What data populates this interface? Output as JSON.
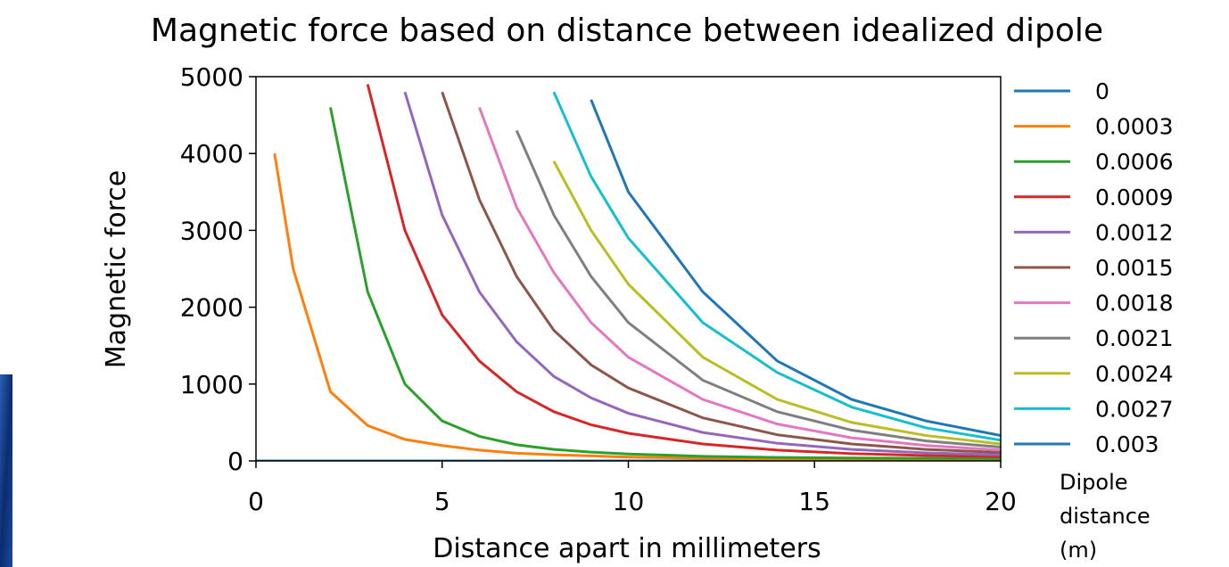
{
  "chart_data": {
    "type": "line",
    "title": "Magnetic force based on distance between idealized dipole",
    "x_label": "Distance apart in millimeters",
    "y_label": "Magnetic force",
    "legend_title": "Dipole distance (m)",
    "legend": "outside-right",
    "x": [
      0,
      0.5,
      1,
      2,
      3,
      4,
      5,
      6,
      7,
      8,
      9,
      10,
      12,
      14,
      16,
      18,
      20
    ],
    "xlim": [
      0,
      20
    ],
    "xticks": [
      0,
      5,
      10,
      15,
      20
    ],
    "ylim": [
      0,
      5000
    ],
    "yticks": [
      0,
      1000,
      2000,
      3000,
      4000,
      5000
    ],
    "series": [
      {
        "name": "0",
        "color": "#1f77b4",
        "values": [
          0,
          0,
          0,
          0,
          0,
          0,
          0,
          0,
          0,
          0,
          0,
          0,
          0,
          0,
          0,
          0,
          0
        ]
      },
      {
        "name": "0.0003",
        "color": "#ff7f0e",
        "values": [
          null,
          4000,
          2500,
          900,
          460,
          280,
          200,
          140,
          100,
          80,
          65,
          50,
          35,
          25,
          20,
          15,
          10
        ]
      },
      {
        "name": "0.0006",
        "color": "#2ca02c",
        "values": [
          null,
          null,
          null,
          4600,
          2200,
          1000,
          520,
          320,
          210,
          150,
          115,
          90,
          60,
          45,
          38,
          33,
          30
        ]
      },
      {
        "name": "0.0009",
        "color": "#d62728",
        "values": [
          null,
          null,
          null,
          null,
          4900,
          3000,
          1900,
          1300,
          900,
          640,
          470,
          360,
          220,
          140,
          95,
          70,
          55
        ]
      },
      {
        "name": "0.0012",
        "color": "#9467bd",
        "values": [
          null,
          null,
          null,
          null,
          null,
          4800,
          3200,
          2200,
          1550,
          1100,
          820,
          620,
          370,
          230,
          150,
          105,
          80
        ]
      },
      {
        "name": "0.0015",
        "color": "#8c564b",
        "values": [
          null,
          null,
          null,
          null,
          null,
          null,
          4800,
          3400,
          2400,
          1700,
          1250,
          950,
          560,
          340,
          220,
          150,
          110
        ]
      },
      {
        "name": "0.0018",
        "color": "#e377c2",
        "values": [
          null,
          null,
          null,
          null,
          null,
          null,
          null,
          4600,
          3300,
          2450,
          1800,
          1350,
          800,
          480,
          300,
          200,
          140
        ]
      },
      {
        "name": "0.0021",
        "color": "#7f7f7f",
        "values": [
          null,
          null,
          null,
          null,
          null,
          null,
          null,
          null,
          4300,
          3200,
          2400,
          1800,
          1050,
          640,
          400,
          260,
          180
        ]
      },
      {
        "name": "0.0024",
        "color": "#bcbd22",
        "values": [
          null,
          null,
          null,
          null,
          null,
          null,
          null,
          null,
          null,
          3900,
          3000,
          2300,
          1350,
          800,
          500,
          330,
          220
        ]
      },
      {
        "name": "0.0027",
        "color": "#17becf",
        "values": [
          null,
          null,
          null,
          null,
          null,
          null,
          null,
          null,
          null,
          4800,
          3700,
          2900,
          1800,
          1150,
          700,
          430,
          270
        ]
      },
      {
        "name": "0.003",
        "color": "#1f77b4",
        "values": [
          null,
          null,
          null,
          null,
          null,
          null,
          null,
          null,
          null,
          null,
          4700,
          3500,
          2200,
          1300,
          800,
          520,
          330
        ]
      }
    ]
  }
}
